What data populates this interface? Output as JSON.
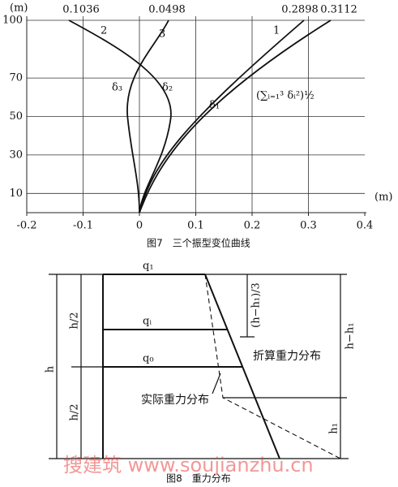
{
  "figure7": {
    "y_unit": "(m)",
    "x_unit": "(m)",
    "yticks": [
      10,
      30,
      50,
      70,
      100
    ],
    "xticks": [
      -0.2,
      -0.1,
      0,
      0.1,
      0.2,
      0.3,
      0.4
    ],
    "top_values": [
      "0.1036",
      "0.0498",
      "0.2898",
      "0.3112"
    ],
    "curve_labels": [
      "1",
      "2",
      "3"
    ],
    "delta_labels": [
      "δ₃",
      "δ₂",
      "δ₁"
    ],
    "srss_label": "(∑ᵢ₌₁³ δᵢ²)½",
    "caption": "图7　三个振型变位曲线"
  },
  "figure8": {
    "q1": "q₁",
    "qi": "qᵢ",
    "q0": "q₀",
    "h": "h",
    "h_half_top": "h/2",
    "h_half_bottom": "h/2",
    "third": "(h−h₁)/3",
    "h_minus_h1": "h−h₁",
    "h1": "h₁",
    "converted": "折算重力分布",
    "actual": "实际重力分布",
    "caption": "图8　重力分布"
  },
  "watermark": "搜建筑 www.soujianzhu.cn"
}
